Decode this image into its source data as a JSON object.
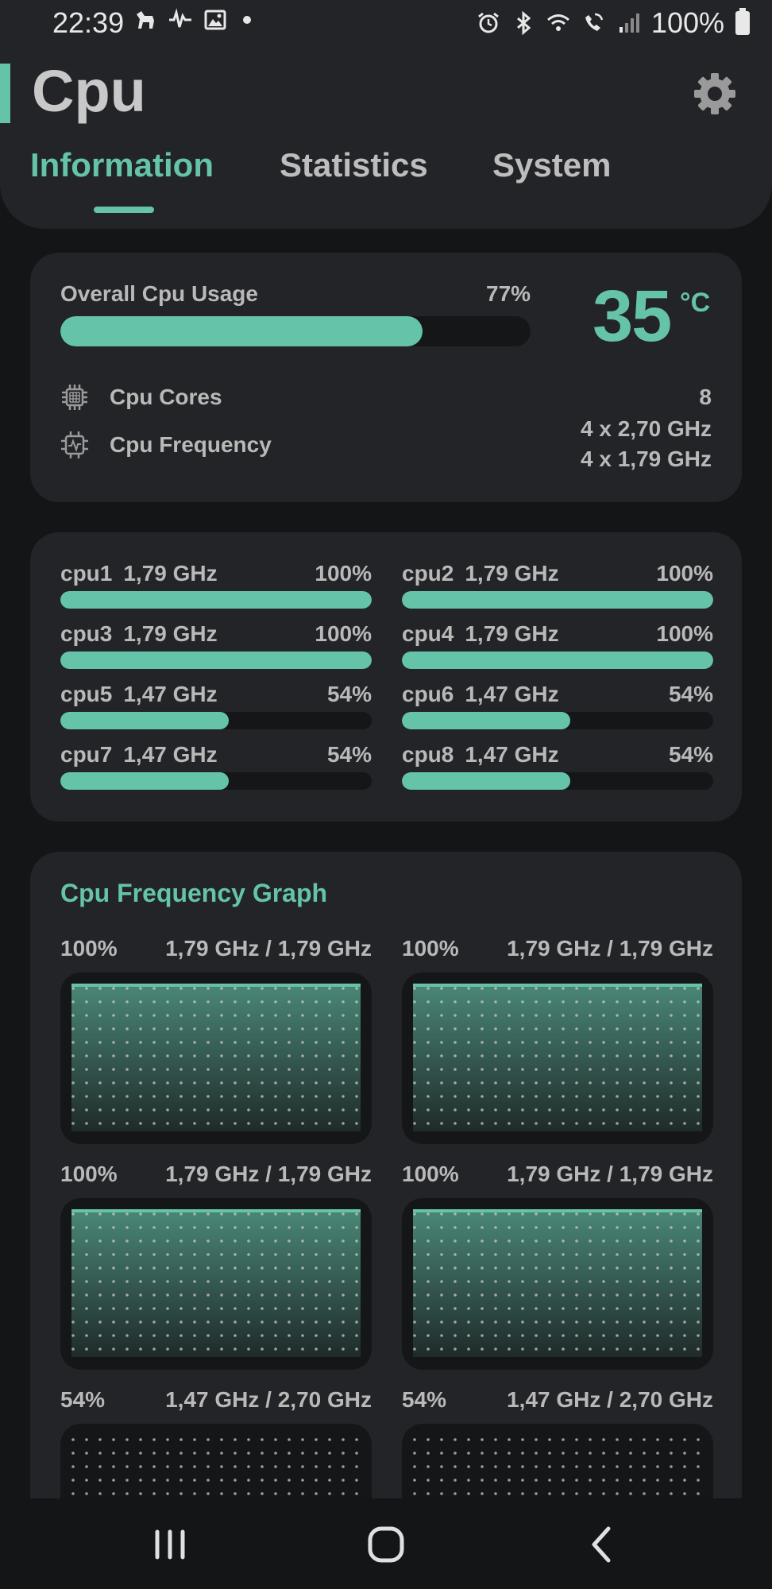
{
  "status_bar": {
    "time": "22:39",
    "battery": "100%",
    "left_icons": [
      "dog-icon",
      "waveform-icon",
      "image-icon",
      "dot-icon"
    ],
    "right_icons": [
      "alarm-icon",
      "bluetooth-icon",
      "wifi-icon",
      "wifi-call-icon",
      "signal-icon",
      "battery-icon"
    ]
  },
  "header": {
    "title": "Cpu",
    "settings_icon": "gear-icon",
    "tabs": [
      {
        "label": "Information",
        "active": true
      },
      {
        "label": "Statistics",
        "active": false
      },
      {
        "label": "System",
        "active": false
      }
    ]
  },
  "overview": {
    "usage_label": "Overall Cpu Usage",
    "usage_pct_text": "77%",
    "usage_fraction": 0.77,
    "temperature": "35",
    "temperature_unit": "°C",
    "cores_label": "Cpu Cores",
    "cores_value": "8",
    "frequency_label": "Cpu Frequency",
    "frequency_values": [
      "4 x 2,70 GHz",
      "4 x 1,79 GHz"
    ]
  },
  "cores": [
    {
      "name": "cpu1",
      "freq": "1,79 GHz",
      "pct": "100%",
      "fraction": 1.0
    },
    {
      "name": "cpu2",
      "freq": "1,79 GHz",
      "pct": "100%",
      "fraction": 1.0
    },
    {
      "name": "cpu3",
      "freq": "1,79 GHz",
      "pct": "100%",
      "fraction": 1.0
    },
    {
      "name": "cpu4",
      "freq": "1,79 GHz",
      "pct": "100%",
      "fraction": 1.0
    },
    {
      "name": "cpu5",
      "freq": "1,47 GHz",
      "pct": "54%",
      "fraction": 0.54
    },
    {
      "name": "cpu6",
      "freq": "1,47 GHz",
      "pct": "54%",
      "fraction": 0.54
    },
    {
      "name": "cpu7",
      "freq": "1,47 GHz",
      "pct": "54%",
      "fraction": 0.54
    },
    {
      "name": "cpu8",
      "freq": "1,47 GHz",
      "pct": "54%",
      "fraction": 0.54
    }
  ],
  "graph": {
    "title": "Cpu Frequency Graph",
    "cells": [
      {
        "pct": "100%",
        "freq": "1,79 GHz / 1,79 GHz",
        "level": 1.0
      },
      {
        "pct": "100%",
        "freq": "1,79 GHz / 1,79 GHz",
        "level": 1.0
      },
      {
        "pct": "100%",
        "freq": "1,79 GHz / 1,79 GHz",
        "level": 1.0
      },
      {
        "pct": "100%",
        "freq": "1,79 GHz / 1,79 GHz",
        "level": 1.0
      },
      {
        "pct": "54%",
        "freq": "1,47 GHz / 2,70 GHz",
        "level": 0.54
      },
      {
        "pct": "54%",
        "freq": "1,47 GHz / 2,70 GHz",
        "level": 0.54
      }
    ]
  },
  "nav": {
    "recents_icon": "recents-icon",
    "home_icon": "home-icon",
    "back_icon": "back-icon"
  },
  "colors": {
    "accent": "#65c3a9",
    "background": "#141517",
    "card": "#232427",
    "track": "#151618",
    "text": "#b9b9b9"
  }
}
